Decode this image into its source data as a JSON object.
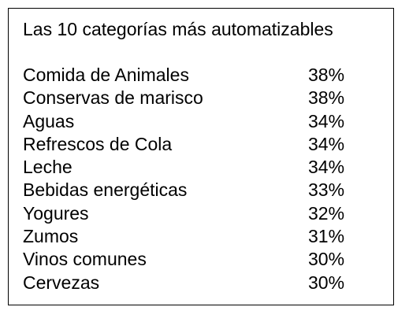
{
  "title": "Las 10 categorías más automatizables",
  "categories": [
    {
      "name": "Comida de Animales",
      "percent": "38%"
    },
    {
      "name": "Conservas de marisco",
      "percent": "38%"
    },
    {
      "name": "Aguas",
      "percent": "34%"
    },
    {
      "name": "Refrescos de Cola",
      "percent": "34%"
    },
    {
      "name": "Leche",
      "percent": "34%"
    },
    {
      "name": "Bebidas energéticas",
      "percent": "33%"
    },
    {
      "name": "Yogures",
      "percent": "32%"
    },
    {
      "name": "Zumos",
      "percent": "31%"
    },
    {
      "name": "Vinos comunes",
      "percent": "30%"
    },
    {
      "name": "Cervezas",
      "percent": "30%"
    }
  ]
}
